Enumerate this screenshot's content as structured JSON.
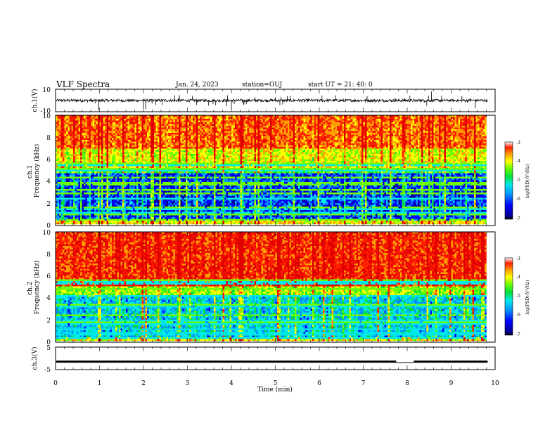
{
  "header": {
    "title": "VLF Spectra",
    "date": "Jan. 24, 2023",
    "station": "station=OUJ",
    "start": "start UT =  21: 40: 0"
  },
  "chart_data": [
    {
      "type": "line",
      "panel": "ch1-waveform",
      "ylabel": "ch.1(V)",
      "ylim": [
        -10,
        10
      ],
      "y_ticks": [
        "10",
        "-10"
      ],
      "xlim": [
        0,
        10
      ],
      "baseline": 0,
      "amplitude_typical": 1.2,
      "spikes": [
        {
          "x": 0.98,
          "y": -9
        },
        {
          "x": 2.0,
          "y": -7
        },
        {
          "x": 2.05,
          "y": -8
        },
        {
          "x": 4.0,
          "y": -7
        },
        {
          "x": 8.55,
          "y": 8
        },
        {
          "x": 9.55,
          "y": -7
        }
      ]
    },
    {
      "type": "heatmap",
      "panel": "ch1-spectrogram",
      "ylabel": "ch.1\nFrequency (kHz)",
      "ylim": [
        0,
        10
      ],
      "y_ticks": [
        "0",
        "2",
        "4",
        "6",
        "8",
        "10"
      ],
      "xlim": [
        0,
        10
      ],
      "data_end_min": 9.83,
      "colorbar": {
        "label": "log(PSD)(V²/Hz)",
        "range": [
          -7,
          -3
        ],
        "ticks": [
          "-3",
          "-4",
          "-5",
          "-6",
          "-7"
        ]
      },
      "high_band_top_khz": 4.8,
      "profile": "weak below ~4.7 kHz (blue), moderate 5-7 kHz (green/yellow), strong above ~7 kHz (orange/red)"
    },
    {
      "type": "heatmap",
      "panel": "ch2-spectrogram",
      "ylabel": "ch.2\nFrequency (kHz)",
      "ylim": [
        0,
        10
      ],
      "y_ticks": [
        "0",
        "2",
        "4",
        "6",
        "8",
        "10"
      ],
      "xlim": [
        0,
        10
      ],
      "data_end_min": 9.83,
      "colorbar": {
        "label": "log(PSD)(V²/Hz)",
        "range": [
          -7,
          -3
        ],
        "ticks": [
          "-3",
          "-4",
          "-5",
          "-6",
          "-7"
        ]
      },
      "profile": "weak/moderate below ~4 kHz, strong (red) above ~5 kHz"
    },
    {
      "type": "line",
      "panel": "ch3-signal",
      "ylabel": "ch.3(V)",
      "ylim": [
        -5,
        5
      ],
      "y_ticks": [
        "5",
        "-5"
      ],
      "xlim": [
        0,
        10
      ],
      "xlabel": "Time (min)",
      "x_ticks": [
        "0",
        "1",
        "2",
        "3",
        "4",
        "5",
        "6",
        "7",
        "8",
        "9",
        "10"
      ],
      "level": -1.5,
      "gap": [
        7.75,
        8.15
      ],
      "gap_level": -1.9
    }
  ],
  "colors": {
    "palette": [
      "#000090",
      "#0000ff",
      "#0090ff",
      "#00e8e8",
      "#00e040",
      "#70ff00",
      "#ffff00",
      "#ffa000",
      "#ff2000",
      "#e00000"
    ]
  }
}
